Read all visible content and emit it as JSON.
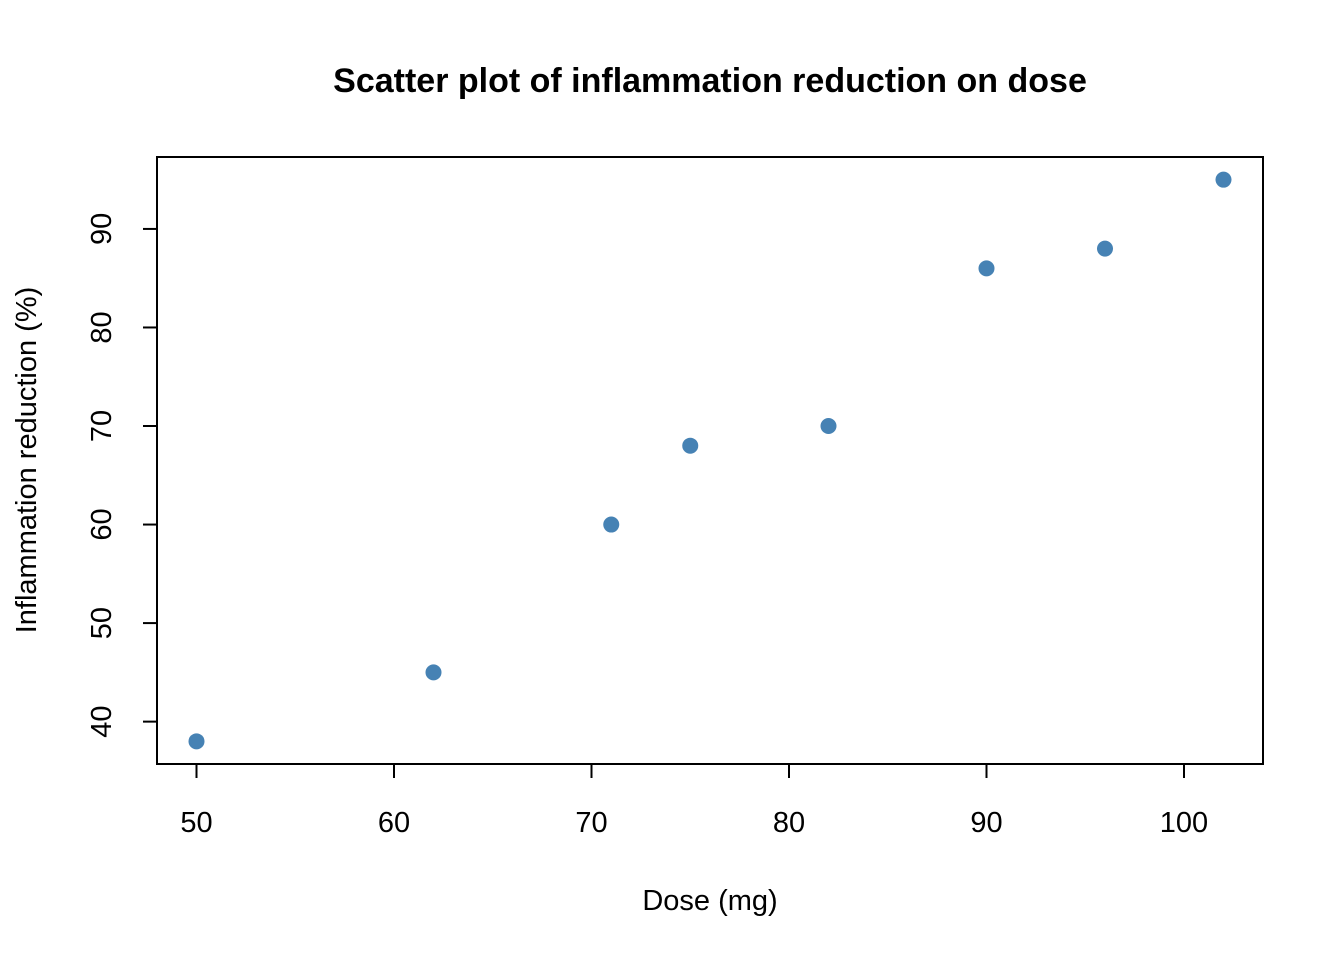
{
  "chart_data": {
    "type": "scatter",
    "title": "Scatter plot of inflammation reduction on dose",
    "xlabel": "Dose (mg)",
    "ylabel": "Inflammation reduction (%)",
    "xlim": [
      48,
      104
    ],
    "ylim": [
      35.7,
      97.3
    ],
    "x_ticks": [
      50,
      60,
      70,
      80,
      90,
      100
    ],
    "y_ticks": [
      40,
      50,
      60,
      70,
      80,
      90
    ],
    "grid": false,
    "legend": "none",
    "point_color": "#4682B4",
    "points": [
      {
        "x": 50,
        "y": 38
      },
      {
        "x": 62,
        "y": 45
      },
      {
        "x": 71,
        "y": 60
      },
      {
        "x": 75,
        "y": 68
      },
      {
        "x": 82,
        "y": 70
      },
      {
        "x": 90,
        "y": 86
      },
      {
        "x": 96,
        "y": 88
      },
      {
        "x": 102,
        "y": 95
      }
    ]
  }
}
